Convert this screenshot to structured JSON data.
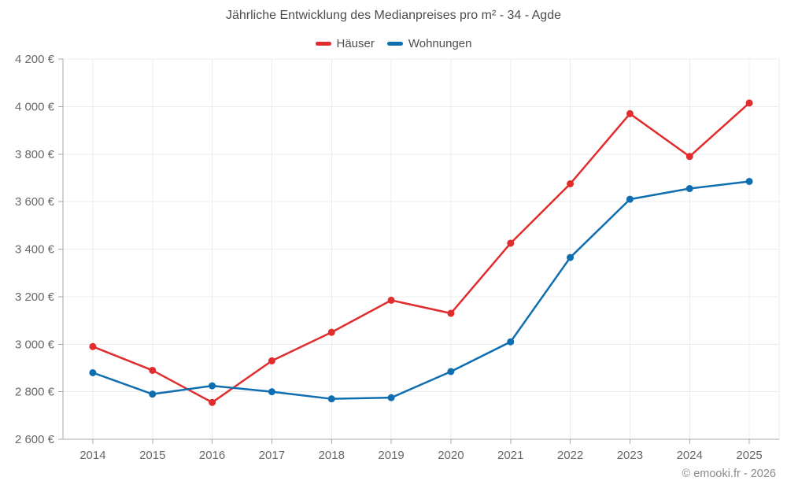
{
  "header": {
    "title": "Jährliche Entwicklung des Medianpreises pro m² - 34 - Agde"
  },
  "legend": [
    {
      "label": "Häuser",
      "color": "#e02c2c"
    },
    {
      "label": "Wohnungen",
      "color": "#0f6eb0"
    }
  ],
  "footer": {
    "credit": "© emooki.fr - 2026"
  },
  "chart_data": {
    "type": "line",
    "title": "Jährliche Entwicklung des Medianpreises pro m² - 34 - Agde",
    "categories": [
      "2014",
      "2015",
      "2016",
      "2017",
      "2018",
      "2019",
      "2020",
      "2021",
      "2022",
      "2023",
      "2024",
      "2025"
    ],
    "series": [
      {
        "name": "Häuser",
        "color": "#e02c2c",
        "values": [
          2990,
          2890,
          2755,
          2930,
          3050,
          3185,
          3130,
          3425,
          3675,
          3970,
          3790,
          4015
        ]
      },
      {
        "name": "Wohnungen",
        "color": "#0f6eb0",
        "values": [
          2880,
          2790,
          2825,
          2800,
          2770,
          2775,
          2885,
          3010,
          3365,
          3610,
          3655,
          3685
        ]
      }
    ],
    "xlabel": "",
    "ylabel": "",
    "ylim": [
      2600,
      4200
    ],
    "ytick_step": 200,
    "ytick_labels": [
      "2 600 €",
      "2 800 €",
      "3 000 €",
      "3 200 €",
      "3 400 €",
      "3 600 €",
      "3 800 €",
      "4 000 €",
      "4 200 €"
    ],
    "grid": true,
    "legend_position": "top",
    "marker_radius": 4.5,
    "line_width": 2.5
  }
}
